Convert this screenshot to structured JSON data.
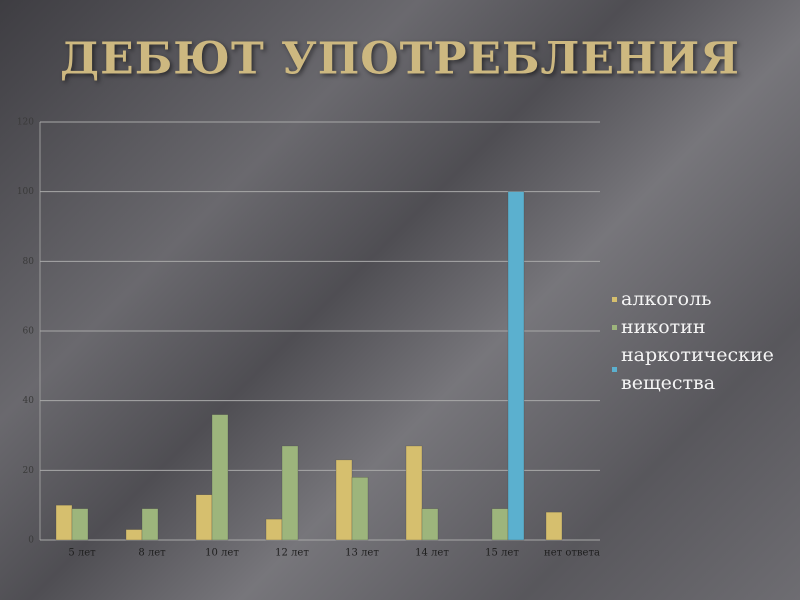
{
  "chart_data": {
    "type": "bar",
    "title": "ДЕБЮТ УПОТРЕБЛЕНИЯ",
    "categories": [
      "5 лет",
      "8 лет",
      "10 лет",
      "12 лет",
      "13 лет",
      "14 лет",
      "15 лет",
      "нет ответа"
    ],
    "series": [
      {
        "name": "алкоголь",
        "color": "#d6bf6e",
        "values": [
          10,
          3,
          13,
          6,
          23,
          27,
          null,
          8
        ]
      },
      {
        "name": "никотин",
        "color": "#9db57c",
        "values": [
          9,
          9,
          36,
          27,
          18,
          9,
          9,
          null
        ]
      },
      {
        "name": "наркотические вещества",
        "color": "#5bb0cf",
        "values": [
          null,
          null,
          null,
          null,
          null,
          null,
          100,
          null
        ]
      }
    ],
    "ylim": [
      0,
      120
    ],
    "yticks": [
      0,
      20,
      40,
      60,
      80,
      100,
      120
    ],
    "grid": true,
    "legend": "right"
  }
}
